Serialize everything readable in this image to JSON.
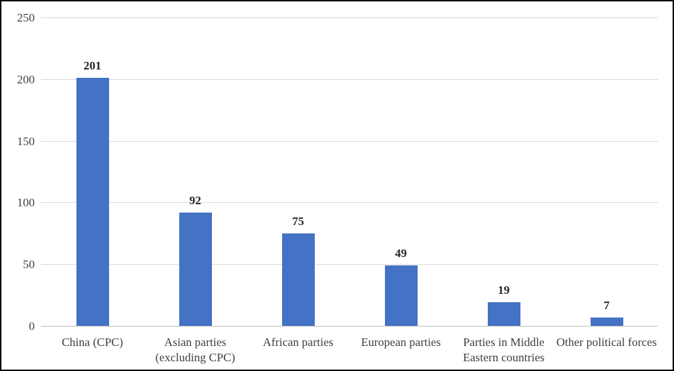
{
  "chart_data": {
    "type": "bar",
    "title": "",
    "xlabel": "",
    "ylabel": "",
    "categories": [
      "China (CPC)",
      "Asian parties (excluding CPC)",
      "African parties",
      "European parties",
      "Parties in Middle Eastern countries",
      "Other political forces"
    ],
    "values": [
      201,
      92,
      75,
      49,
      19,
      7
    ],
    "data_labels": [
      "201",
      "92",
      "75",
      "49",
      "19",
      "7"
    ],
    "ylim": [
      0,
      250
    ],
    "yticks": [
      0,
      50,
      100,
      150,
      200,
      250
    ],
    "ytick_labels": [
      "0",
      "50",
      "100",
      "150",
      "200",
      "250"
    ],
    "grid": true,
    "legend": false,
    "colors": {
      "bar": "#4472c4",
      "gridline": "#d9d9d9",
      "axis_line": "#bfbfbf",
      "tick_text": "#404040",
      "category_text": "#404040",
      "value_text": "#262626",
      "background": "#ffffff",
      "frame": "#000000"
    }
  }
}
